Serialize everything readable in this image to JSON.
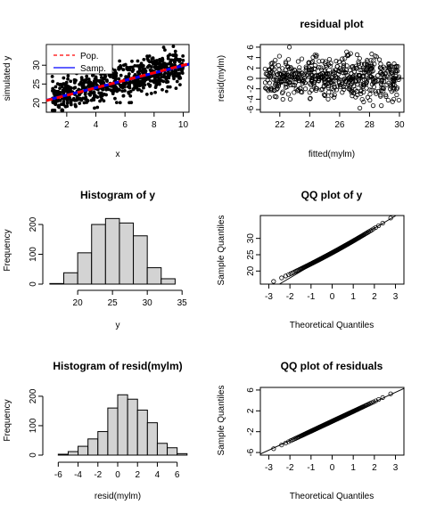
{
  "panels": [
    {
      "title": "",
      "xlabel": "x",
      "ylabel": "simulated y",
      "xticks": [
        "2",
        "4",
        "6",
        "8",
        "10"
      ],
      "yticks": [
        "20",
        "25",
        "30"
      ],
      "legend": [
        "Pop.",
        "Samp."
      ]
    },
    {
      "title": "residual plot",
      "xlabel": "fitted(mylm)",
      "ylabel": "resid(mylm)",
      "xticks": [
        "22",
        "24",
        "26",
        "28",
        "30"
      ],
      "yticks": [
        "-6",
        "-4",
        "-2",
        "0",
        "2",
        "4",
        "6"
      ]
    },
    {
      "title": "Histogram of y",
      "xlabel": "y",
      "ylabel": "Frequency",
      "xticks": [
        "20",
        "25",
        "30",
        "35"
      ],
      "yticks": [
        "0",
        "100",
        "200"
      ]
    },
    {
      "title": "QQ plot of y",
      "xlabel": "Theoretical Quantiles",
      "ylabel": "Sample Quantiles",
      "xticks": [
        "-3",
        "-2",
        "-1",
        "0",
        "1",
        "2",
        "3"
      ],
      "yticks": [
        "20",
        "25",
        "30"
      ]
    },
    {
      "title": "Histogram of resid(mylm)",
      "xlabel": "resid(mylm)",
      "ylabel": "Frequency",
      "xticks": [
        "-6",
        "-4",
        "-2",
        "0",
        "2",
        "4",
        "6"
      ],
      "yticks": [
        "0",
        "100",
        "200"
      ]
    },
    {
      "title": "QQ plot of residuals",
      "xlabel": "Theoretical Quantiles",
      "ylabel": "Sample Quantiles",
      "xticks": [
        "-3",
        "-2",
        "-1",
        "0",
        "1",
        "2",
        "3"
      ],
      "yticks": [
        "-6",
        "-2",
        "2",
        "6"
      ]
    }
  ],
  "chart_data": [
    {
      "type": "scatter",
      "title": "",
      "xlabel": "x",
      "ylabel": "simulated y",
      "xlim": [
        0.6,
        10.4
      ],
      "ylim": [
        17.5,
        35.5
      ],
      "point_count": 1000,
      "x_range": [
        1,
        10
      ],
      "y_range": [
        18,
        35
      ],
      "lines": [
        {
          "name": "Pop.",
          "style": "dashed",
          "color": "#ff0000",
          "intercept": 20.0,
          "slope": 1.0
        },
        {
          "name": "Samp.",
          "style": "solid",
          "color": "#0000ff",
          "intercept": 20.1,
          "slope": 0.98
        }
      ],
      "legend_position": "top-left"
    },
    {
      "type": "scatter",
      "title": "residual plot",
      "xlabel": "fitted(mylm)",
      "ylabel": "resid(mylm)",
      "xlim": [
        20.7,
        30.3
      ],
      "ylim": [
        -6.5,
        6.5
      ],
      "point_count": 1000,
      "x_range": [
        21,
        30
      ],
      "y_range": [
        -6,
        6
      ],
      "reference_line": {
        "y": 0
      }
    },
    {
      "type": "bar",
      "title": "Histogram of y",
      "xlabel": "y",
      "ylabel": "Frequency",
      "xlim": [
        15.5,
        36
      ],
      "ylim": [
        0,
        230
      ],
      "bin_edges": [
        16,
        18,
        20,
        22,
        24,
        26,
        28,
        30,
        32,
        34
      ],
      "values": [
        2,
        38,
        105,
        200,
        220,
        205,
        162,
        55,
        18
      ]
    },
    {
      "type": "scatter",
      "title": "QQ plot of y",
      "xlabel": "Theoretical Quantiles",
      "ylabel": "Sample Quantiles",
      "xlim": [
        -3.4,
        3.4
      ],
      "ylim": [
        16,
        37
      ],
      "x_range": [
        -3.3,
        3.3
      ],
      "y_range": [
        17,
        35.5
      ],
      "qq_line": {
        "intercept": 25.5,
        "slope": 3.8
      }
    },
    {
      "type": "bar",
      "title": "Histogram of resid(mylm)",
      "xlabel": "resid(mylm)",
      "ylabel": "Frequency",
      "xlim": [
        -7.2,
        7.2
      ],
      "ylim": [
        0,
        230
      ],
      "bin_edges": [
        -7,
        -6,
        -5,
        -4,
        -3,
        -2,
        -1,
        0,
        1,
        2,
        3,
        4,
        5,
        6,
        7
      ],
      "values": [
        0,
        3,
        12,
        30,
        55,
        80,
        160,
        205,
        190,
        153,
        110,
        40,
        25,
        5
      ]
    },
    {
      "type": "scatter",
      "title": "QQ plot of residuals",
      "xlabel": "Theoretical Quantiles",
      "ylabel": "Sample Quantiles",
      "xlim": [
        -3.4,
        3.4
      ],
      "ylim": [
        -6.5,
        6.5
      ],
      "x_range": [
        -3.3,
        3.3
      ],
      "y_range": [
        -6.2,
        6.2
      ],
      "qq_line": {
        "intercept": 0,
        "slope": 1.85
      }
    }
  ]
}
